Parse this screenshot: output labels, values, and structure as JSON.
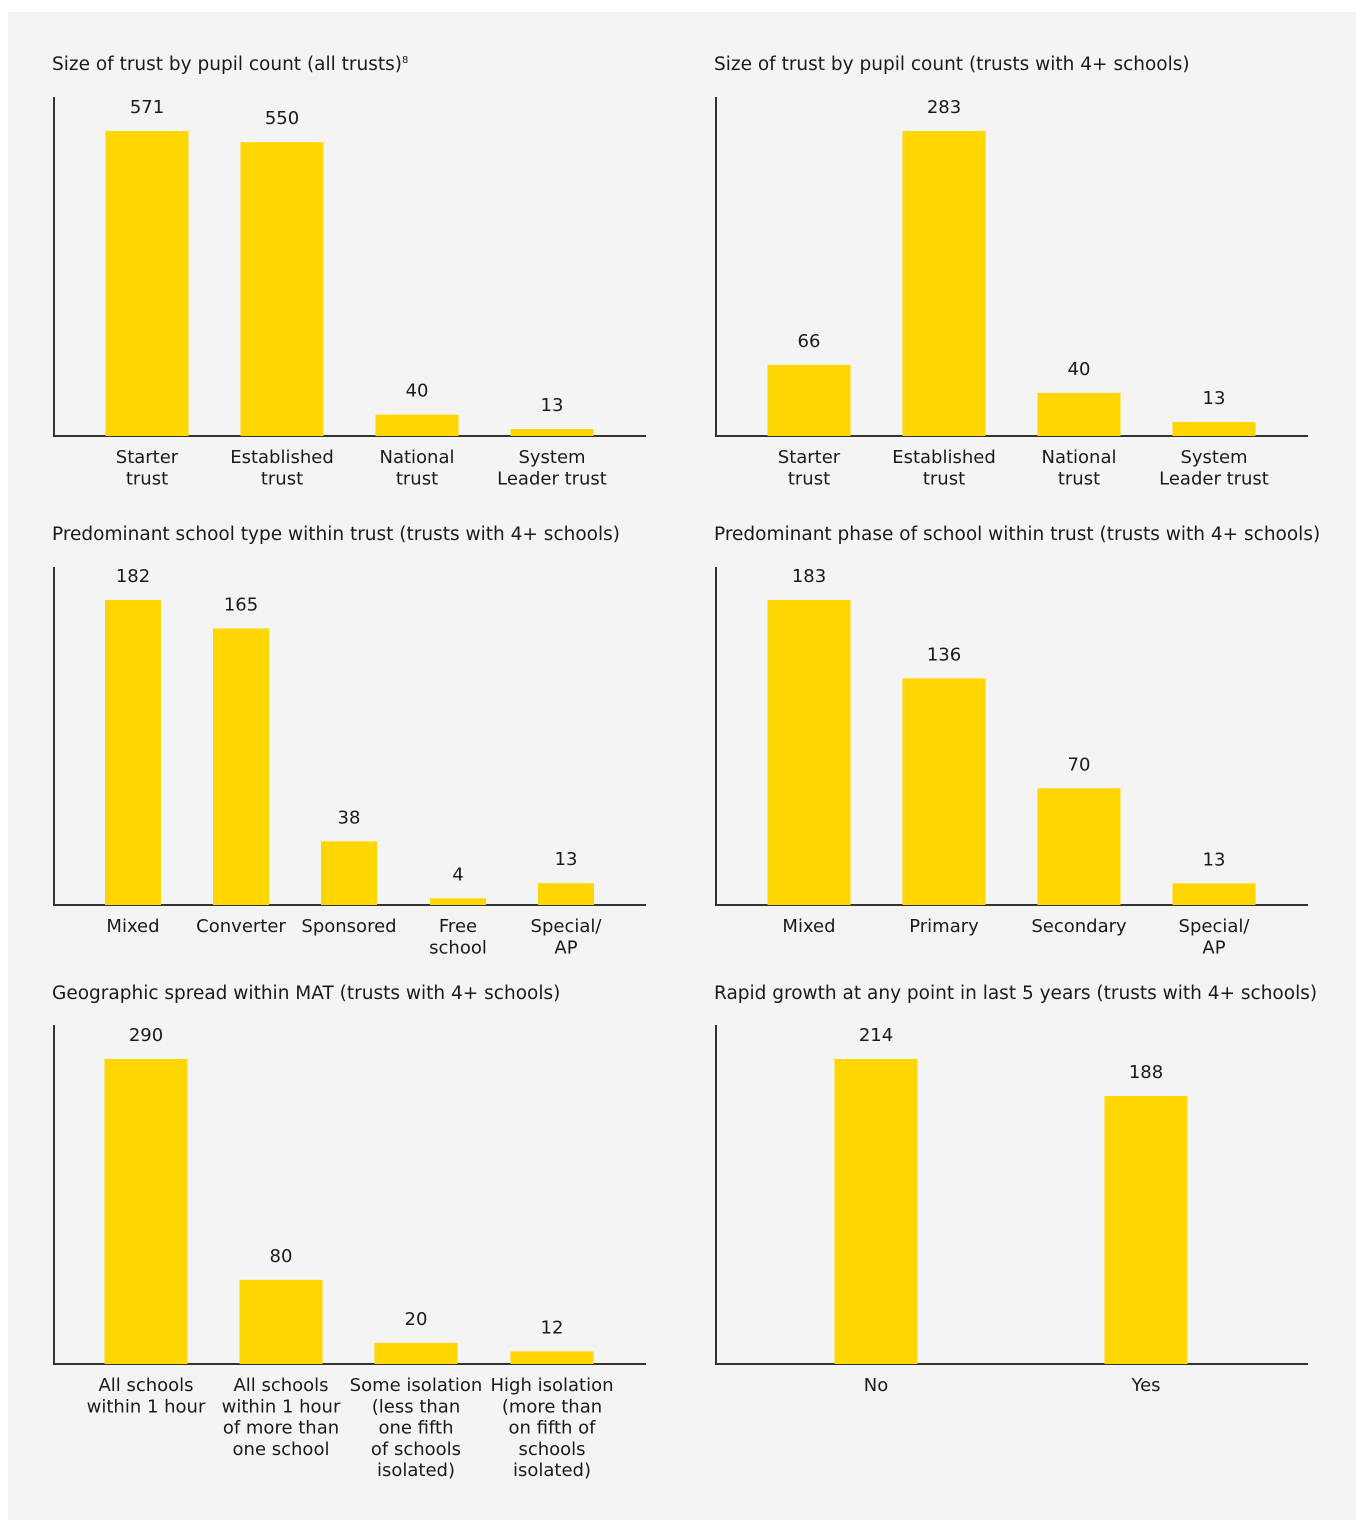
{
  "colors": {
    "bar": "#FFD600",
    "axis": "#333333",
    "background": "#f4f4f4"
  },
  "chart_data": [
    {
      "type": "bar",
      "title": "Size of trust by pupil count (all trusts)",
      "title_footnote": "8",
      "categories": [
        "Starter trust",
        "Established trust",
        "National trust",
        "System Leader trust"
      ],
      "category_lines": [
        [
          "Starter",
          "trust"
        ],
        [
          "Established",
          "trust"
        ],
        [
          "National",
          "trust"
        ],
        [
          "System",
          "Leader trust"
        ]
      ],
      "values": [
        571,
        550,
        40,
        13
      ]
    },
    {
      "type": "bar",
      "title": "Size of trust by pupil count (trusts with 4+ schools)",
      "categories": [
        "Starter trust",
        "Established trust",
        "National trust",
        "System Leader trust"
      ],
      "category_lines": [
        [
          "Starter",
          "trust"
        ],
        [
          "Established",
          "trust"
        ],
        [
          "National",
          "trust"
        ],
        [
          "System",
          "Leader trust"
        ]
      ],
      "values": [
        66,
        283,
        40,
        13
      ]
    },
    {
      "type": "bar",
      "title": "Predominant school type within trust (trusts with 4+ schools)",
      "categories": [
        "Mixed",
        "Converter",
        "Sponsored",
        "Free school",
        "Special/ AP"
      ],
      "category_lines": [
        [
          "Mixed"
        ],
        [
          "Converter"
        ],
        [
          "Sponsored"
        ],
        [
          "Free",
          "school"
        ],
        [
          "Special/",
          "AP"
        ]
      ],
      "values": [
        182,
        165,
        38,
        4,
        13
      ]
    },
    {
      "type": "bar",
      "title": "Predominant phase of school within trust (trusts with 4+ schools)",
      "categories": [
        "Mixed",
        "Primary",
        "Secondary",
        "Special/ AP"
      ],
      "category_lines": [
        [
          "Mixed"
        ],
        [
          "Primary"
        ],
        [
          "Secondary"
        ],
        [
          "Special/",
          "AP"
        ]
      ],
      "values": [
        183,
        136,
        70,
        13
      ]
    },
    {
      "type": "bar",
      "title": "Geographic spread within MAT (trusts with 4+ schools)",
      "categories": [
        "All schools within 1 hour",
        "All schools within 1 hour of more than one school",
        "Some isolation (less than one fifth of schools isolated)",
        "High isolation (more than on fifth of schools isolated)"
      ],
      "category_lines": [
        [
          "All schools",
          "within 1 hour"
        ],
        [
          "All schools",
          "within 1 hour",
          "of more than",
          "one school"
        ],
        [
          "Some isolation",
          "(less than",
          "one fifth",
          "of schools",
          "isolated)"
        ],
        [
          "High isolation",
          "(more than",
          "on fifth of",
          "schools",
          "isolated)"
        ]
      ],
      "values": [
        290,
        80,
        20,
        12
      ]
    },
    {
      "type": "bar",
      "title": "Rapid growth at any point in last 5 years (trusts with 4+ schools)",
      "categories": [
        "No",
        "Yes"
      ],
      "category_lines": [
        [
          "No"
        ],
        [
          "Yes"
        ]
      ],
      "values": [
        214,
        188
      ]
    }
  ]
}
